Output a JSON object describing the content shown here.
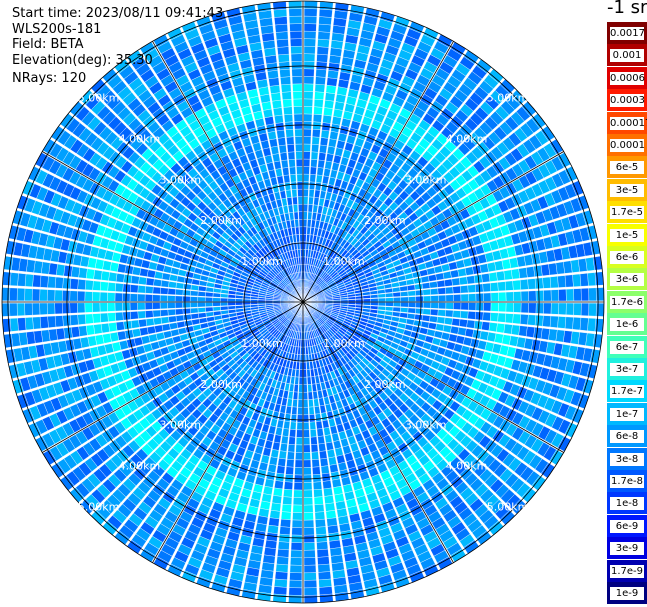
{
  "info": {
    "start_time": "Start time: 2023/08/11 09:41:43",
    "instrument": "WLS200s-181",
    "field": "Field: BETA",
    "elevation": "Elevation(deg): 35.30",
    "nrays": "NRays: 120"
  },
  "units_label": "-1 sr",
  "colorbar": {
    "labels": [
      "0.0017",
      "0.001",
      "0.0006",
      "0.0003",
      "0.00017",
      "0.0001",
      "6e-5",
      "3e-5",
      "1.7e-5",
      "1e-5",
      "6e-6",
      "3e-6",
      "1.7e-6",
      "1e-6",
      "6e-7",
      "3e-7",
      "1.7e-7",
      "1e-7",
      "6e-8",
      "3e-8",
      "1.7e-8",
      "1e-8",
      "6e-9",
      "3e-9",
      "1.7e-9",
      "1e-9"
    ],
    "colors": [
      "#800000",
      "#b00000",
      "#e00000",
      "#ff1a00",
      "#ff4800",
      "#ff7000",
      "#ff9800",
      "#ffbc00",
      "#ffde00",
      "#f8ff00",
      "#d8ff20",
      "#b4ff44",
      "#8cff6a",
      "#64ff92",
      "#40ffba",
      "#20f0de",
      "#00d8ff",
      "#00b8ff",
      "#0098ff",
      "#0078ff",
      "#0058ff",
      "#0038ff",
      "#0018ff",
      "#0000e0",
      "#0000b0",
      "#000080"
    ]
  },
  "chart_data": {
    "type": "ppi",
    "field": "BETA",
    "elevation_deg": 35.3,
    "nrays": 120,
    "range_rings_km": [
      1,
      2,
      3,
      4,
      5
    ],
    "range_labels": [
      "1.00km",
      "2.00km",
      "3.00km",
      "4.00km",
      "5.00km"
    ],
    "max_range_km": 5.1,
    "spokes_deg": [
      0,
      30,
      60,
      90,
      120,
      150,
      180,
      210,
      240,
      270,
      300,
      330
    ],
    "dominant_value_range": [
      1.7e-08,
      1e-07
    ],
    "colormap": "jet"
  }
}
